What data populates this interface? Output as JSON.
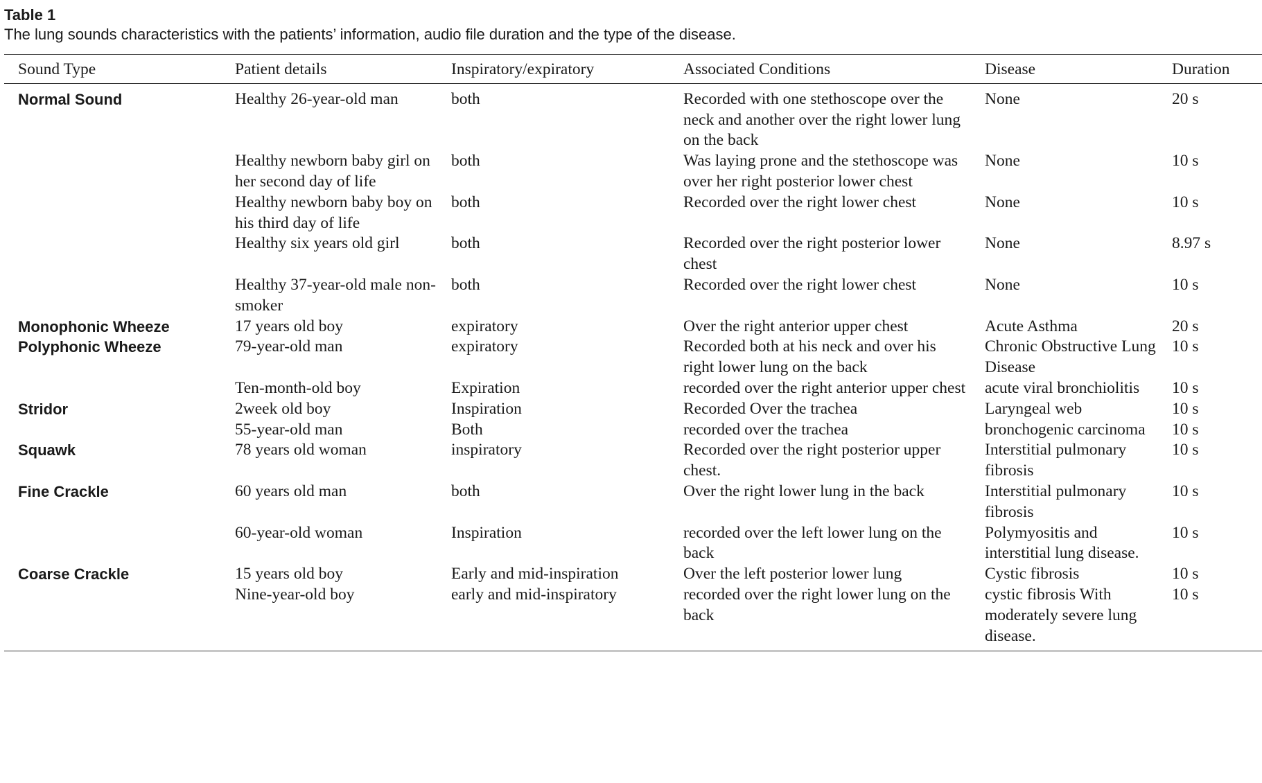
{
  "table_label": "Table 1",
  "caption": "The lung sounds characteristics with the patients’ information, audio file duration and the type of the disease.",
  "headers": {
    "sound_type": "Sound Type",
    "patient_details": "Patient details",
    "insp_exp": "Inspiratory/expiratory",
    "conditions": "Associated Conditions",
    "disease": "Disease",
    "duration": "Duration"
  },
  "rows": [
    {
      "sound_type": "Normal Sound",
      "patient": "Healthy 26-year-old man",
      "insp_exp": "both",
      "conditions": "Recorded with one stethoscope over the neck and another over the right lower lung on the back",
      "disease": "None",
      "duration": "20 s"
    },
    {
      "sound_type": "",
      "patient": "Healthy newborn baby girl on her second day of life",
      "insp_exp": "both",
      "conditions": "Was laying prone and the stethoscope was over her right posterior lower chest",
      "disease": "None",
      "duration": "10 s"
    },
    {
      "sound_type": "",
      "patient": "Healthy newborn baby boy on his third day of life",
      "insp_exp": "both",
      "conditions": "Recorded over the right lower chest",
      "disease": "None",
      "duration": "10 s"
    },
    {
      "sound_type": "",
      "patient": "Healthy six years old girl",
      "insp_exp": "both",
      "conditions": "Recorded over the right posterior lower chest",
      "disease": "None",
      "duration": "8.97 s"
    },
    {
      "sound_type": "",
      "patient": "Healthy 37-year-old male non-smoker",
      "insp_exp": "both",
      "conditions": "Recorded over the right lower chest",
      "disease": "None",
      "duration": "10 s"
    },
    {
      "sound_type": "Monophonic Wheeze",
      "patient": "17 years old boy",
      "insp_exp": "expiratory",
      "conditions": "Over the right anterior upper chest",
      "disease": "Acute Asthma",
      "duration": "20 s"
    },
    {
      "sound_type": "Polyphonic Wheeze",
      "patient": "79-year-old man",
      "insp_exp": "expiratory",
      "conditions": "Recorded both at his neck and over his right lower lung on the back",
      "disease": "Chronic Obstructive Lung Disease",
      "duration": "10 s"
    },
    {
      "sound_type": "",
      "patient": "Ten-month-old boy",
      "insp_exp": "Expiration",
      "conditions": "recorded over the right anterior upper chest",
      "disease": "acute viral bronchiolitis",
      "duration": "10 s"
    },
    {
      "sound_type": "Stridor",
      "patient": "2week old boy",
      "insp_exp": "Inspiration",
      "conditions": "Recorded Over the trachea",
      "disease": "Laryngeal web",
      "duration": "10 s"
    },
    {
      "sound_type": "",
      "patient": "55-year-old man",
      "insp_exp": "Both",
      "conditions": "recorded over the trachea",
      "disease": "bronchogenic carcinoma",
      "duration": "10 s"
    },
    {
      "sound_type": "Squawk",
      "patient": "78 years old woman",
      "insp_exp": "inspiratory",
      "conditions": "Recorded over the right posterior upper chest.",
      "disease": "Interstitial pulmonary fibrosis",
      "duration": "10 s"
    },
    {
      "sound_type": "Fine Crackle",
      "patient": "60 years old man",
      "insp_exp": "both",
      "conditions": "Over the right lower lung in the back",
      "disease": "Interstitial pulmonary fibrosis",
      "duration": "10 s"
    },
    {
      "sound_type": "",
      "patient": "60-year-old woman",
      "insp_exp": "Inspiration",
      "conditions": "recorded over the left lower lung on the back",
      "disease": "Polymyositis and interstitial lung disease.",
      "duration": "10 s"
    },
    {
      "sound_type": "Coarse Crackle",
      "patient": "15 years old boy",
      "insp_exp": "Early and mid-inspiration",
      "conditions": "Over the left posterior lower lung",
      "disease": "Cystic fibrosis",
      "duration": "10 s"
    },
    {
      "sound_type": "",
      "patient": "Nine-year-old boy",
      "insp_exp": "early and mid-inspiratory",
      "conditions": "recorded over the right lower lung on the back",
      "disease": "cystic fibrosis With moderately severe lung disease.",
      "duration": "10 s"
    }
  ]
}
